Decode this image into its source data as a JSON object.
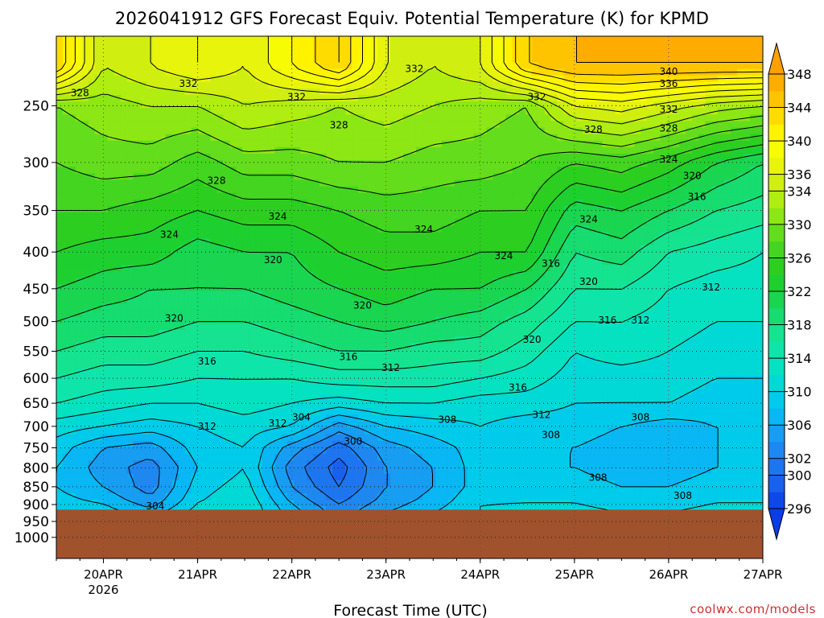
{
  "chart_data": {
    "type": "heatmap",
    "title": "2026041912 GFS Forecast Equiv. Potential Temperature (K) for KPMD",
    "xlabel": "Forecast Time (UTC)",
    "ylabel": "",
    "credit": "coolwx.com/models",
    "y_scale": "log-pressure",
    "y_reversed": true,
    "y_range_hpa": [
      1070,
      200
    ],
    "y_ticks_hpa": [
      250,
      300,
      350,
      400,
      450,
      500,
      550,
      600,
      650,
      700,
      750,
      800,
      850,
      900,
      950,
      1000
    ],
    "x_range_days": [
      19.5,
      27.0
    ],
    "x_ticks": [
      {
        "day": 20,
        "label": "20APR",
        "sub": "2026"
      },
      {
        "day": 21,
        "label": "21APR",
        "sub": ""
      },
      {
        "day": 22,
        "label": "22APR",
        "sub": ""
      },
      {
        "day": 23,
        "label": "23APR",
        "sub": ""
      },
      {
        "day": 24,
        "label": "24APR",
        "sub": ""
      },
      {
        "day": 25,
        "label": "25APR",
        "sub": ""
      },
      {
        "day": 26,
        "label": "26APR",
        "sub": ""
      },
      {
        "day": 27,
        "label": "27APR",
        "sub": ""
      }
    ],
    "colorbar": {
      "levels": [
        296,
        298,
        300,
        302,
        304,
        306,
        308,
        310,
        312,
        314,
        316,
        318,
        320,
        322,
        324,
        326,
        328,
        330,
        332,
        334,
        336,
        338,
        340,
        342,
        344,
        346,
        348
      ],
      "labels": [
        348,
        344,
        340,
        336,
        334,
        330,
        326,
        322,
        318,
        314,
        310,
        306,
        302,
        300,
        296
      ],
      "colors": {
        "296": "#0a3ce8",
        "300": "#1e6cf0",
        "304": "#1e90f0",
        "308": "#00c4f4",
        "312": "#00e0cc",
        "316": "#14e6a0",
        "320": "#18d860",
        "324": "#20cc20",
        "328": "#50d820",
        "332": "#a0ec10",
        "336": "#e0f010",
        "340": "#ffff00",
        "344": "#ffd000",
        "348": "#ffa000"
      }
    },
    "ground_color": "#a0522d",
    "ground_level_hpa": 915,
    "profiles": {
      "days": [
        19.5,
        20.0,
        20.5,
        21.0,
        21.5,
        22.0,
        22.5,
        23.0,
        23.5,
        24.0,
        24.5,
        25.0,
        25.5,
        26.0,
        26.5,
        27.0
      ],
      "pressure_hpa": [
        220,
        250,
        300,
        350,
        400,
        450,
        500,
        550,
        600,
        650,
        700,
        750,
        800,
        850,
        900,
        915
      ],
      "theta_e_K": [
        [
          344,
          330,
          328,
          326,
          324,
          322,
          320,
          318,
          316,
          314,
          311,
          309,
          308,
          308,
          309,
          310
        ],
        [
          334,
          331,
          329,
          326,
          323,
          321,
          319,
          317,
          315,
          313,
          310,
          306,
          305,
          306,
          308,
          309
        ],
        [
          336,
          332,
          329,
          325,
          323,
          320,
          319,
          317,
          315,
          312,
          309,
          305,
          303,
          303,
          305,
          307
        ],
        [
          338,
          332,
          327,
          324,
          321,
          320,
          318,
          316,
          314,
          312,
          310,
          309,
          308,
          309,
          310,
          311
        ],
        [
          336,
          334,
          329,
          325,
          322,
          320,
          318,
          316,
          314,
          313,
          311,
          310,
          310,
          311,
          312,
          312
        ],
        [
          340,
          333,
          329,
          325,
          322,
          321,
          319,
          317,
          314,
          312,
          310,
          305,
          303,
          304,
          306,
          307
        ],
        [
          344,
          332,
          330,
          326,
          324,
          322,
          320,
          318,
          315,
          311,
          305,
          301,
          299,
          300,
          302,
          303
        ],
        [
          336,
          333,
          330,
          327,
          325,
          323,
          321,
          318,
          315,
          312,
          308,
          305,
          304,
          304,
          305,
          306
        ],
        [
          334,
          332,
          329,
          327,
          325,
          322,
          320,
          317,
          315,
          312,
          309,
          307,
          306,
          306,
          307,
          308
        ],
        [
          336,
          331,
          329,
          326,
          324,
          322,
          319,
          317,
          314,
          311,
          310,
          309,
          309,
          309,
          310,
          310
        ],
        [
          344,
          330,
          328,
          326,
          324,
          320,
          317,
          315,
          313,
          311,
          309,
          308,
          308,
          309,
          310,
          311
        ],
        [
          346,
          336,
          326,
          321,
          318,
          316,
          314,
          312,
          311,
          310,
          309,
          308,
          308,
          309,
          310,
          311
        ],
        [
          346,
          337,
          327,
          322,
          319,
          316,
          314,
          313,
          311,
          310,
          308,
          307,
          307,
          308,
          309,
          310
        ],
        [
          346,
          335,
          325,
          320,
          316,
          314,
          313,
          312,
          311,
          310,
          307,
          306,
          307,
          308,
          309,
          310
        ],
        [
          346,
          333,
          322,
          318,
          315,
          313,
          312,
          311,
          310,
          309,
          308,
          308,
          308,
          309,
          310,
          311
        ],
        [
          346,
          332,
          320,
          317,
          314,
          313,
          312,
          311,
          310,
          309,
          308,
          308,
          308,
          309,
          310,
          311
        ]
      ]
    },
    "contour_interval_K": 2,
    "contour_labels": [
      {
        "day": 19.75,
        "p": 240,
        "value": "328"
      },
      {
        "day": 20.9,
        "p": 233,
        "value": "332"
      },
      {
        "day": 22.05,
        "p": 243,
        "value": "332"
      },
      {
        "day": 23.3,
        "p": 222,
        "value": "332"
      },
      {
        "day": 24.6,
        "p": 243,
        "value": "332"
      },
      {
        "day": 26.0,
        "p": 224,
        "value": "340"
      },
      {
        "day": 26.0,
        "p": 233,
        "value": "336"
      },
      {
        "day": 26.0,
        "p": 253,
        "value": "332"
      },
      {
        "day": 22.5,
        "p": 266,
        "value": "328"
      },
      {
        "day": 25.2,
        "p": 270,
        "value": "328"
      },
      {
        "day": 26.0,
        "p": 269,
        "value": "328"
      },
      {
        "day": 21.2,
        "p": 318,
        "value": "328"
      },
      {
        "day": 26.0,
        "p": 297,
        "value": "324"
      },
      {
        "day": 26.25,
        "p": 313,
        "value": "320"
      },
      {
        "day": 26.3,
        "p": 335,
        "value": "316"
      },
      {
        "day": 21.85,
        "p": 357,
        "value": "324"
      },
      {
        "day": 20.7,
        "p": 378,
        "value": "324"
      },
      {
        "day": 23.4,
        "p": 372,
        "value": "324"
      },
      {
        "day": 24.25,
        "p": 405,
        "value": "324"
      },
      {
        "day": 25.15,
        "p": 360,
        "value": "324"
      },
      {
        "day": 21.8,
        "p": 410,
        "value": "320"
      },
      {
        "day": 24.75,
        "p": 415,
        "value": "316"
      },
      {
        "day": 25.15,
        "p": 440,
        "value": "320"
      },
      {
        "day": 26.45,
        "p": 448,
        "value": "312"
      },
      {
        "day": 20.75,
        "p": 495,
        "value": "320"
      },
      {
        "day": 22.75,
        "p": 475,
        "value": "320"
      },
      {
        "day": 25.35,
        "p": 498,
        "value": "316"
      },
      {
        "day": 25.7,
        "p": 498,
        "value": "312"
      },
      {
        "day": 24.55,
        "p": 530,
        "value": "320"
      },
      {
        "day": 21.1,
        "p": 568,
        "value": "316"
      },
      {
        "day": 22.6,
        "p": 560,
        "value": "316"
      },
      {
        "day": 23.05,
        "p": 580,
        "value": "312"
      },
      {
        "day": 24.4,
        "p": 618,
        "value": "316"
      },
      {
        "day": 24.65,
        "p": 675,
        "value": "312"
      },
      {
        "day": 21.1,
        "p": 700,
        "value": "312"
      },
      {
        "day": 21.85,
        "p": 693,
        "value": "312"
      },
      {
        "day": 22.1,
        "p": 680,
        "value": "304"
      },
      {
        "day": 23.65,
        "p": 685,
        "value": "308"
      },
      {
        "day": 24.75,
        "p": 720,
        "value": "308"
      },
      {
        "day": 25.7,
        "p": 680,
        "value": "308"
      },
      {
        "day": 22.65,
        "p": 735,
        "value": "300"
      },
      {
        "day": 25.25,
        "p": 825,
        "value": "308"
      },
      {
        "day": 26.15,
        "p": 875,
        "value": "308"
      },
      {
        "day": 20.55,
        "p": 905,
        "value": "304"
      }
    ]
  }
}
